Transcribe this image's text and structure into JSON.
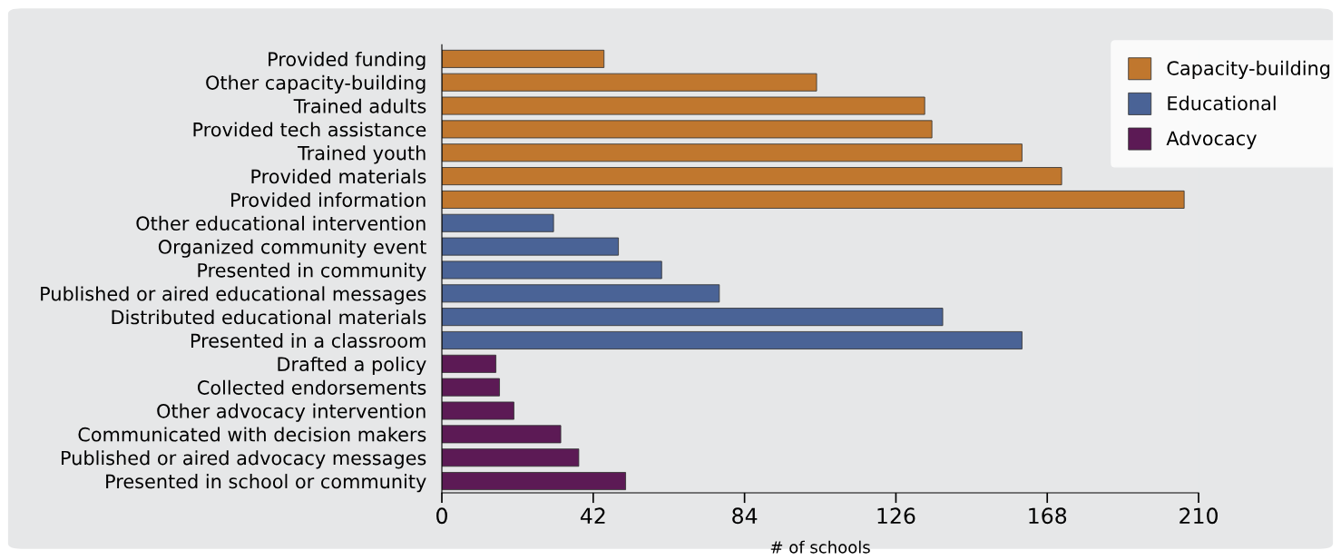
{
  "chart_data": {
    "type": "bar",
    "orientation": "horizontal",
    "xlabel": "# of schools",
    "categories": [
      "Provided funding",
      "Other capacity-building",
      "Trained adults",
      "Provided tech assistance",
      "Trained youth",
      "Provided materials",
      "Provided information",
      "Other educational intervention",
      "Organized community event",
      "Presented in community",
      "Published or aired educational messages",
      "Distributed educational materials",
      "Presented in a classroom",
      "Drafted a policy",
      "Collected endorsements",
      "Other advocacy intervention",
      "Communicated with decision makers",
      "Published or aired advocacy messages",
      "Presented in school or community"
    ],
    "series": [
      {
        "name": "Capacity-building",
        "color": "#c0772e",
        "values": [
          45,
          104,
          134,
          136,
          161,
          172,
          206,
          null,
          null,
          null,
          null,
          null,
          null,
          null,
          null,
          null,
          null,
          null,
          null
        ]
      },
      {
        "name": "Educational",
        "color": "#4a6396",
        "values": [
          null,
          null,
          null,
          null,
          null,
          null,
          null,
          31,
          49,
          61,
          77,
          139,
          161,
          null,
          null,
          null,
          null,
          null,
          null
        ]
      },
      {
        "name": "Advocacy",
        "color": "#5c1a55",
        "values": [
          null,
          null,
          null,
          null,
          null,
          null,
          null,
          null,
          null,
          null,
          null,
          null,
          null,
          15,
          16,
          20,
          33,
          38,
          51
        ]
      }
    ],
    "xlim": [
      0,
      210
    ],
    "xticks": [
      0,
      42,
      84,
      126,
      168,
      210
    ],
    "grid": false,
    "legend": "top right"
  }
}
